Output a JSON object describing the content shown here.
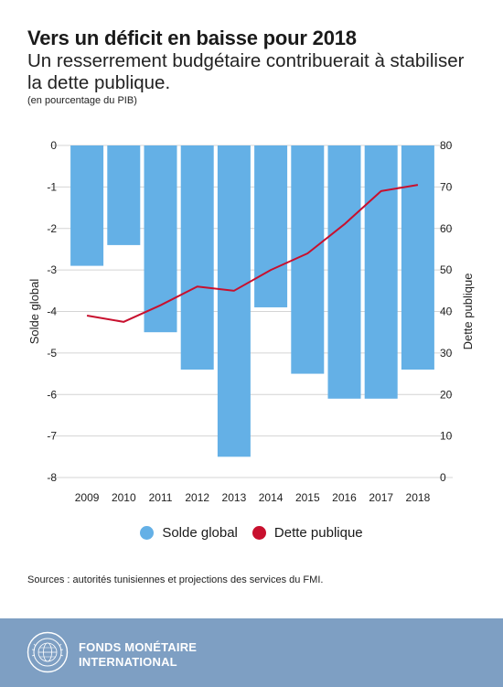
{
  "header": {
    "title": "Vers un déficit en baisse pour 2018",
    "subtitle": "Un resserrement budgétaire contribuerait à stabiliser la dette publique.",
    "unit_note": "(en pourcentage du PIB)"
  },
  "chart_data": {
    "type": "bar",
    "categories": [
      "2009",
      "2010",
      "2011",
      "2012",
      "2013",
      "2014",
      "2015",
      "2016",
      "2017",
      "2018"
    ],
    "series": [
      {
        "name": "Solde global",
        "type": "bar",
        "axis": "left",
        "color": "#64b0e6",
        "values": [
          -2.9,
          -2.4,
          -4.5,
          -5.4,
          -7.5,
          -3.9,
          -5.5,
          -6.1,
          -6.1,
          -5.4
        ]
      },
      {
        "name": "Dette publique",
        "type": "line",
        "axis": "right",
        "color": "#c8102e",
        "values": [
          39.0,
          37.5,
          41.5,
          46.0,
          45.0,
          50.0,
          54.0,
          61.0,
          69.0,
          70.5
        ]
      }
    ],
    "ylabel": "Solde global",
    "ylabel_right": "Dette publique",
    "ylim": [
      -8,
      0
    ],
    "ylim_right": [
      0,
      80
    ],
    "yticks": [
      "0",
      "-1",
      "-2",
      "-3",
      "-4",
      "-5",
      "-6",
      "-7",
      "-8"
    ],
    "yticks_right": [
      "80",
      "70",
      "60",
      "50",
      "40",
      "30",
      "20",
      "10",
      "0"
    ],
    "grid": true,
    "legend": "bottom-center"
  },
  "legend": {
    "items": [
      {
        "label": "Solde global",
        "color": "#64b0e6"
      },
      {
        "label": "Dette publique",
        "color": "#c8102e"
      }
    ]
  },
  "source": "Sources : autorités tunisiennes et projections des services du FMI.",
  "footer": {
    "org_line1": "FONDS MONÉTAIRE",
    "org_line2": "INTERNATIONAL",
    "seal_icon": "imf-seal-icon",
    "background": "#7e9fc3"
  }
}
